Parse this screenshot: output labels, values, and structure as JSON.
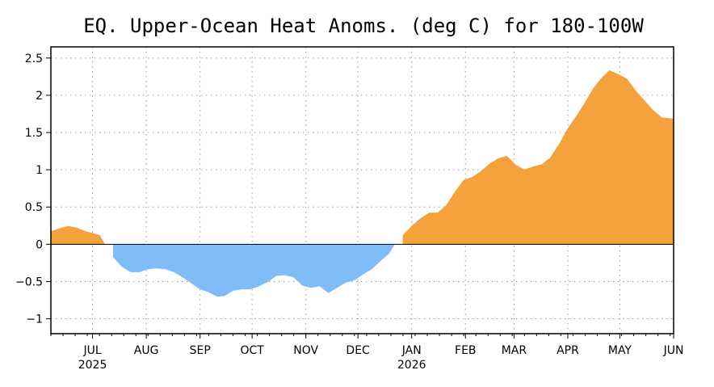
{
  "chart_data": {
    "type": "area",
    "title": "EQ. Upper-Ocean Heat Anoms. (deg C) for 180-100W",
    "xlabel": "",
    "ylabel": "",
    "ylim": [
      -1.2,
      2.65
    ],
    "y_ticks": [
      {
        "value": 2.5,
        "label": "2.5"
      },
      {
        "value": 2,
        "label": "2"
      },
      {
        "value": 1.5,
        "label": "1.5"
      },
      {
        "value": 1,
        "label": "1"
      },
      {
        "value": 0.5,
        "label": "0.5"
      },
      {
        "value": 0,
        "label": "0"
      },
      {
        "value": -0.5,
        "label": "−0.5"
      },
      {
        "value": -1,
        "label": "−1"
      }
    ],
    "x_range": [
      "2025-06-07",
      "2026-06-01"
    ],
    "x_ticks": [
      {
        "date": "2025-07-01",
        "label": "JUL",
        "year": "2025"
      },
      {
        "date": "2025-08-01",
        "label": "AUG"
      },
      {
        "date": "2025-09-01",
        "label": "SEP"
      },
      {
        "date": "2025-10-01",
        "label": "OCT"
      },
      {
        "date": "2025-11-01",
        "label": "NOV"
      },
      {
        "date": "2025-12-01",
        "label": "DEC"
      },
      {
        "date": "2026-01-01",
        "label": "JAN",
        "year": "2026"
      },
      {
        "date": "2026-02-01",
        "label": "FEB"
      },
      {
        "date": "2026-03-01",
        "label": "MAR"
      },
      {
        "date": "2026-04-01",
        "label": "APR"
      },
      {
        "date": "2026-05-01",
        "label": "MAY"
      },
      {
        "date": "2026-06-01",
        "label": "JUN"
      }
    ],
    "grid": true,
    "colors": {
      "positive": "#F4A23C",
      "negative": "#80BDF8"
    },
    "series": [
      {
        "points": [
          [
            "2025-06-07",
            0.17
          ],
          [
            "2025-06-12",
            0.21
          ],
          [
            "2025-06-17",
            0.24
          ],
          [
            "2025-06-22",
            0.22
          ],
          [
            "2025-06-27",
            0.17
          ],
          [
            "2025-07-02",
            0.14
          ],
          [
            "2025-07-05",
            0.12
          ],
          [
            "2025-07-08",
            0.0
          ],
          [
            "2025-07-13",
            -0.17
          ],
          [
            "2025-07-18",
            -0.3
          ],
          [
            "2025-07-23",
            -0.37
          ],
          [
            "2025-07-28",
            -0.37
          ],
          [
            "2025-08-02",
            -0.33
          ],
          [
            "2025-08-07",
            -0.32
          ],
          [
            "2025-08-12",
            -0.33
          ],
          [
            "2025-08-17",
            -0.37
          ],
          [
            "2025-08-22",
            -0.44
          ],
          [
            "2025-08-27",
            -0.52
          ],
          [
            "2025-09-01",
            -0.6
          ],
          [
            "2025-09-06",
            -0.64
          ],
          [
            "2025-09-11",
            -0.7
          ],
          [
            "2025-09-15",
            -0.69
          ],
          [
            "2025-09-20",
            -0.62
          ],
          [
            "2025-09-25",
            -0.6
          ],
          [
            "2025-09-30",
            -0.6
          ],
          [
            "2025-10-05",
            -0.56
          ],
          [
            "2025-10-10",
            -0.5
          ],
          [
            "2025-10-15",
            -0.42
          ],
          [
            "2025-10-20",
            -0.41
          ],
          [
            "2025-10-25",
            -0.44
          ],
          [
            "2025-10-30",
            -0.55
          ],
          [
            "2025-11-04",
            -0.58
          ],
          [
            "2025-11-09",
            -0.56
          ],
          [
            "2025-11-14",
            -0.65
          ],
          [
            "2025-11-19",
            -0.58
          ],
          [
            "2025-11-24",
            -0.51
          ],
          [
            "2025-11-29",
            -0.48
          ],
          [
            "2025-12-04",
            -0.4
          ],
          [
            "2025-12-09",
            -0.33
          ],
          [
            "2025-12-14",
            -0.22
          ],
          [
            "2025-12-19",
            -0.12
          ],
          [
            "2025-12-22",
            0.0
          ],
          [
            "2025-12-27",
            0.12
          ],
          [
            "2026-01-01",
            0.24
          ],
          [
            "2026-01-06",
            0.34
          ],
          [
            "2026-01-11",
            0.42
          ],
          [
            "2026-01-16",
            0.42
          ],
          [
            "2026-01-21",
            0.52
          ],
          [
            "2026-01-26",
            0.7
          ],
          [
            "2026-01-31",
            0.86
          ],
          [
            "2026-02-05",
            0.9
          ],
          [
            "2026-02-10",
            0.98
          ],
          [
            "2026-02-15",
            1.08
          ],
          [
            "2026-02-20",
            1.15
          ],
          [
            "2026-02-25",
            1.18
          ],
          [
            "2026-03-02",
            1.06
          ],
          [
            "2026-03-07",
            1.0
          ],
          [
            "2026-03-12",
            1.04
          ],
          [
            "2026-03-17",
            1.07
          ],
          [
            "2026-03-22",
            1.16
          ],
          [
            "2026-03-27",
            1.34
          ],
          [
            "2026-04-01",
            1.55
          ],
          [
            "2026-04-06",
            1.72
          ],
          [
            "2026-04-11",
            1.9
          ],
          [
            "2026-04-16",
            2.1
          ],
          [
            "2026-04-21",
            2.24
          ],
          [
            "2026-04-25",
            2.33
          ],
          [
            "2026-04-30",
            2.28
          ],
          [
            "2026-05-05",
            2.22
          ],
          [
            "2026-05-10",
            2.06
          ],
          [
            "2026-05-15",
            1.93
          ],
          [
            "2026-05-20",
            1.8
          ],
          [
            "2026-05-25",
            1.7
          ],
          [
            "2026-06-01",
            1.68
          ]
        ]
      }
    ]
  }
}
